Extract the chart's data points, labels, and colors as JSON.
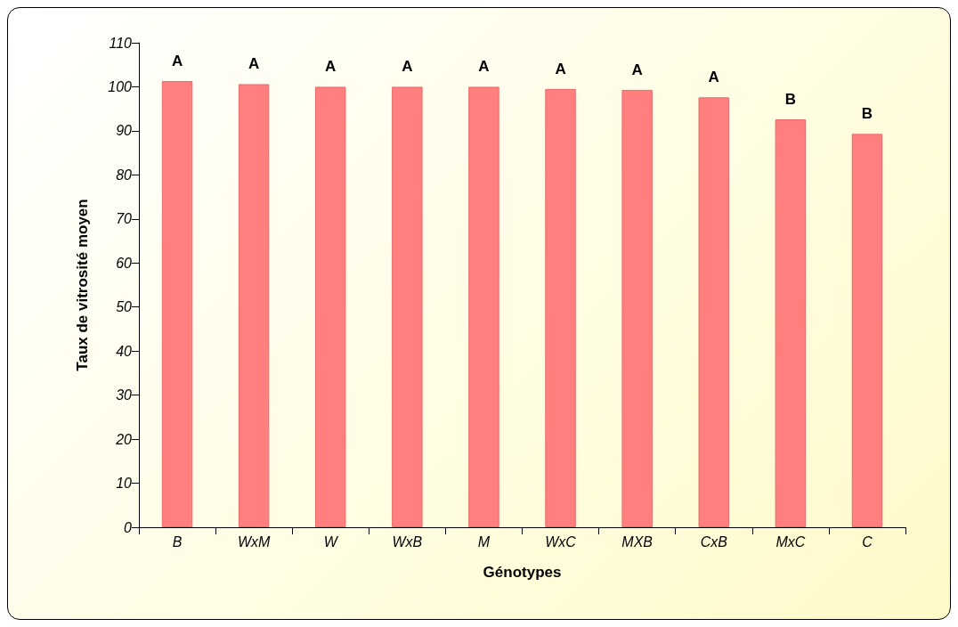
{
  "chart_data": {
    "type": "bar",
    "xlabel": "Génotypes",
    "ylabel": "Taux de vitrosité moyen",
    "categories": [
      "B",
      "WxM",
      "W",
      "WxB",
      "M",
      "WxC",
      "MXB",
      "CxB",
      "MxC",
      "C"
    ],
    "values": [
      101.3,
      100.6,
      100,
      100,
      100,
      99.5,
      99.3,
      97.6,
      92.6,
      89.3
    ],
    "value_labels": [
      "A",
      "A",
      "A",
      "A",
      "A",
      "A",
      "A",
      "A",
      "B",
      "B"
    ],
    "color": "#ff7f7f",
    "ylim": [
      0,
      110
    ],
    "yticks": [
      0,
      10,
      20,
      30,
      40,
      50,
      60,
      70,
      80,
      90,
      100,
      110
    ],
    "grid": false
  }
}
